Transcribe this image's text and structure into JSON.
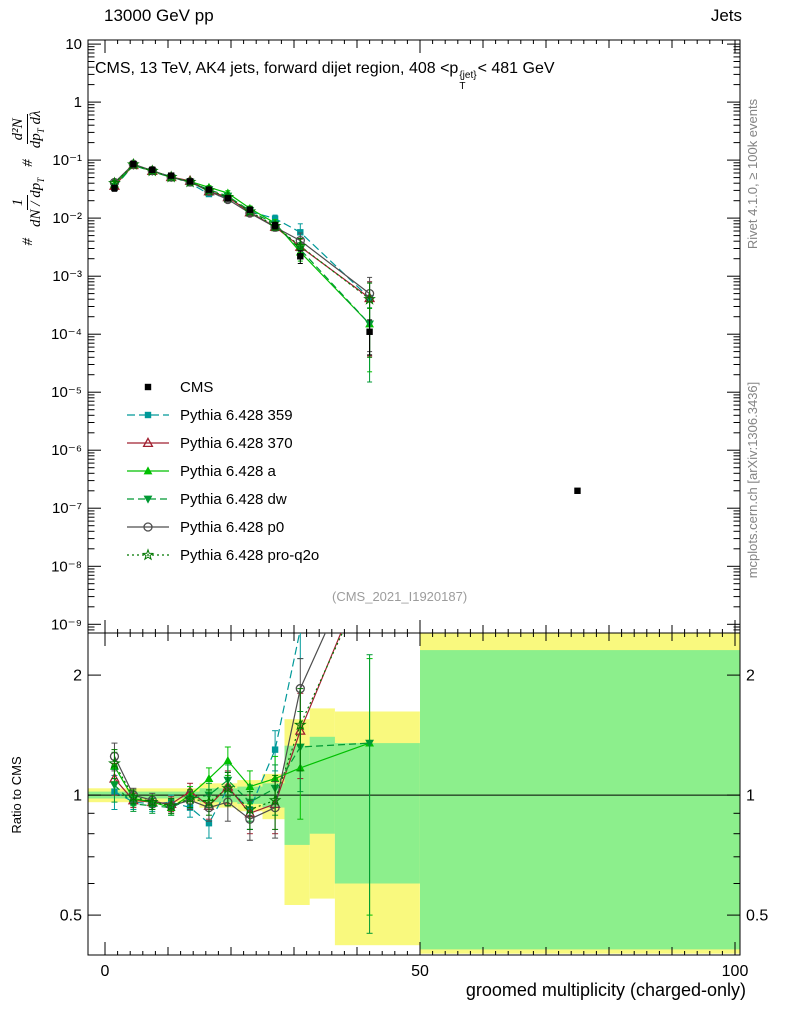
{
  "header": {
    "left": "13000 GeV pp",
    "right": "Jets",
    "title_prefix": "CMS, 13 TeV, AK4 jets, forward dijet region, 408 <p",
    "title_sup": "{jet}",
    "title_sub": "T",
    "title_suffix": "< 481 GeV"
  },
  "side_notes": {
    "rivet": "Rivet 4.1.0, ≥ 100k events",
    "mcplots": "mcplots.cern.ch [arXiv:1306.3436]"
  },
  "watermark": "(CMS_2021_I1920187)",
  "ylabel_main": {
    "hash1": "#",
    "frac1_num": "1",
    "frac1_den": "dN / dp",
    "frac1_den_sub": "T",
    "hash2": "#",
    "frac2_num": "d²N",
    "frac2_den": "dp",
    "frac2_den_sub": "T",
    "frac2_den_tail": " dλ"
  },
  "chart_data": {
    "type": "line",
    "title": "CMS, 13 TeV, AK4 jets, forward dijet region, 408 <p_T^{jet}< 481 GeV",
    "xlabel": "groomed multiplicity (charged-only)",
    "ylabel_ratio": "Ratio to CMS",
    "xlim": [
      -2.7,
      100.8
    ],
    "xticks": [
      {
        "v": 0,
        "label": "0"
      },
      {
        "v": 50,
        "label": "50"
      },
      {
        "v": 100,
        "label": "100"
      }
    ],
    "main": {
      "ylog": true,
      "ylim_exp": [
        -9.15,
        1.07
      ],
      "yticks": [
        {
          "v": 10,
          "label": "10"
        },
        {
          "v": 1,
          "label": "1"
        },
        {
          "v": 0.1,
          "label": "10⁻¹"
        },
        {
          "v": 0.01,
          "label": "10⁻²"
        },
        {
          "v": 0.001,
          "label": "10⁻³"
        },
        {
          "v": 0.0001,
          "label": "10⁻⁴"
        },
        {
          "v": 1e-05,
          "label": "10⁻⁵"
        },
        {
          "v": 1e-06,
          "label": "10⁻⁶"
        },
        {
          "v": 1e-07,
          "label": "10⁻⁷"
        },
        {
          "v": 1e-08,
          "label": "10⁻⁸"
        },
        {
          "v": 1e-09,
          "label": "10⁻⁹"
        }
      ]
    },
    "x": [
      1.5,
      4.5,
      7.5,
      10.5,
      13.5,
      16.5,
      19.5,
      23,
      27,
      31,
      42
    ],
    "cms": {
      "label": "CMS",
      "color": "#000000",
      "x": [
        1.5,
        4.5,
        7.5,
        10.5,
        13.5,
        16.5,
        19.5,
        23,
        27,
        31,
        42,
        75
      ],
      "y": [
        0.033,
        0.085,
        0.068,
        0.054,
        0.043,
        0.031,
        0.022,
        0.014,
        0.0075,
        0.0022,
        0.00011,
        2e-07
      ],
      "yerr_frac": [
        0.12,
        0.05,
        0.05,
        0.05,
        0.05,
        0.06,
        0.08,
        0.1,
        0.13,
        0.25,
        0.6,
        0
      ]
    },
    "series": [
      {
        "name": "Pythia 6.428 359",
        "color": "#009999",
        "dash": "8,4",
        "marker": "square-filled",
        "y": [
          0.034,
          0.082,
          0.065,
          0.052,
          0.04,
          0.026,
          0.023,
          0.013,
          0.0098,
          0.0057,
          0.00042
        ],
        "ratio": [
          1.02,
          0.96,
          0.95,
          0.96,
          0.93,
          0.85,
          1.04,
          0.92,
          1.3,
          2.6,
          3.8
        ],
        "ratio_err": [
          0.1,
          0.04,
          0.04,
          0.04,
          0.05,
          0.07,
          0.1,
          0.1,
          0.15,
          0.4,
          0.9
        ]
      },
      {
        "name": "Pythia 6.428 370",
        "color": "#a02030",
        "dash": "",
        "marker": "triangle-open",
        "y": [
          0.036,
          0.082,
          0.065,
          0.051,
          0.044,
          0.029,
          0.023,
          0.0126,
          0.0071,
          0.0032,
          0.00042
        ],
        "ratio": [
          1.1,
          0.97,
          0.96,
          0.95,
          1.02,
          0.94,
          1.05,
          0.9,
          0.95,
          1.45,
          3.8
        ],
        "ratio_err": [
          0.1,
          0.04,
          0.04,
          0.04,
          0.05,
          0.07,
          0.1,
          0.1,
          0.15,
          0.35,
          0.9
        ]
      },
      {
        "name": "Pythia 6.428 a",
        "color": "#00c000",
        "dash": "",
        "marker": "triangle-filled",
        "y": [
          0.039,
          0.083,
          0.065,
          0.05,
          0.043,
          0.034,
          0.027,
          0.0147,
          0.0082,
          0.0026,
          0.00015
        ],
        "ratio": [
          1.18,
          0.98,
          0.96,
          0.93,
          1.0,
          1.1,
          1.22,
          1.05,
          1.1,
          1.17,
          1.35
        ],
        "ratio_err": [
          0.1,
          0.04,
          0.04,
          0.04,
          0.05,
          0.07,
          0.1,
          0.1,
          0.15,
          0.3,
          0.85
        ]
      },
      {
        "name": "Pythia 6.428 dw",
        "color": "#009933",
        "dash": "7,4",
        "marker": "triangle-down-filled",
        "y": [
          0.035,
          0.081,
          0.064,
          0.05,
          0.042,
          0.031,
          0.024,
          0.0135,
          0.0078,
          0.0029,
          0.00015
        ],
        "ratio": [
          1.06,
          0.95,
          0.94,
          0.93,
          0.98,
          1.0,
          1.09,
          0.96,
          1.04,
          1.32,
          1.35
        ],
        "ratio_err": [
          0.1,
          0.04,
          0.04,
          0.04,
          0.05,
          0.07,
          0.1,
          0.1,
          0.15,
          0.3,
          0.9
        ]
      },
      {
        "name": "Pythia 6.428 p0",
        "color": "#4d4d4d",
        "dash": "",
        "marker": "circle-open",
        "y": [
          0.041,
          0.085,
          0.066,
          0.051,
          0.042,
          0.029,
          0.021,
          0.0122,
          0.007,
          0.0041,
          0.0005
        ],
        "ratio": [
          1.25,
          1.0,
          0.97,
          0.94,
          0.97,
          0.93,
          0.96,
          0.87,
          0.93,
          1.85,
          4.5
        ],
        "ratio_err": [
          0.1,
          0.04,
          0.04,
          0.04,
          0.05,
          0.07,
          0.1,
          0.1,
          0.15,
          0.35,
          0.9
        ]
      },
      {
        "name": "Pythia 6.428 pro-q2o",
        "color": "#007700",
        "dash": "2,3",
        "marker": "star-open",
        "y": [
          0.04,
          0.084,
          0.065,
          0.051,
          0.042,
          0.03,
          0.023,
          0.013,
          0.0073,
          0.0033,
          0.0004
        ],
        "ratio": [
          1.2,
          0.99,
          0.96,
          0.94,
          0.98,
          0.96,
          1.04,
          0.92,
          0.97,
          1.5,
          3.6
        ],
        "ratio_err": [
          0.1,
          0.04,
          0.04,
          0.04,
          0.05,
          0.07,
          0.1,
          0.1,
          0.15,
          0.35,
          0.9
        ]
      }
    ],
    "ratio_panel": {
      "ylim": [
        0.397,
        2.55
      ],
      "yticks": [
        {
          "v": 0.5,
          "label": "0.5"
        },
        {
          "v": 1,
          "label": "1"
        },
        {
          "v": 2,
          "label": "2"
        }
      ],
      "yminor": [
        0.6,
        0.7,
        0.8,
        0.9
      ],
      "yellow_color": "#f9f97e",
      "green_color": "#8cef8c",
      "bands_yellow": [
        {
          "x0": -2.7,
          "x1": 15,
          "y0": 0.96,
          "y1": 1.04
        },
        {
          "x0": 15,
          "x1": 21,
          "y0": 0.93,
          "y1": 1.07
        },
        {
          "x0": 21,
          "x1": 25,
          "y0": 0.91,
          "y1": 1.09
        },
        {
          "x0": 25,
          "x1": 28.5,
          "y0": 0.87,
          "y1": 1.13
        },
        {
          "x0": 28.5,
          "x1": 32.5,
          "y0": 0.53,
          "y1": 1.55
        },
        {
          "x0": 32.5,
          "x1": 36.5,
          "y0": 0.55,
          "y1": 1.65
        },
        {
          "x0": 36.5,
          "x1": 50,
          "y0": 0.42,
          "y1": 1.62
        },
        {
          "x0": 50,
          "x1": 100.8,
          "y0": 0.4,
          "y1": 2.55
        }
      ],
      "bands_green": [
        {
          "x0": -2.7,
          "x1": 15,
          "y0": 0.98,
          "y1": 1.02
        },
        {
          "x0": 15,
          "x1": 21,
          "y0": 0.96,
          "y1": 1.04
        },
        {
          "x0": 21,
          "x1": 25,
          "y0": 0.95,
          "y1": 1.05
        },
        {
          "x0": 25,
          "x1": 28.5,
          "y0": 0.93,
          "y1": 1.07
        },
        {
          "x0": 28.5,
          "x1": 32.5,
          "y0": 0.75,
          "y1": 1.33
        },
        {
          "x0": 32.5,
          "x1": 36.5,
          "y0": 0.8,
          "y1": 1.4
        },
        {
          "x0": 36.5,
          "x1": 50,
          "y0": 0.6,
          "y1": 1.35
        },
        {
          "x0": 50,
          "x1": 100.8,
          "y0": 0.41,
          "y1": 2.31
        }
      ]
    }
  }
}
